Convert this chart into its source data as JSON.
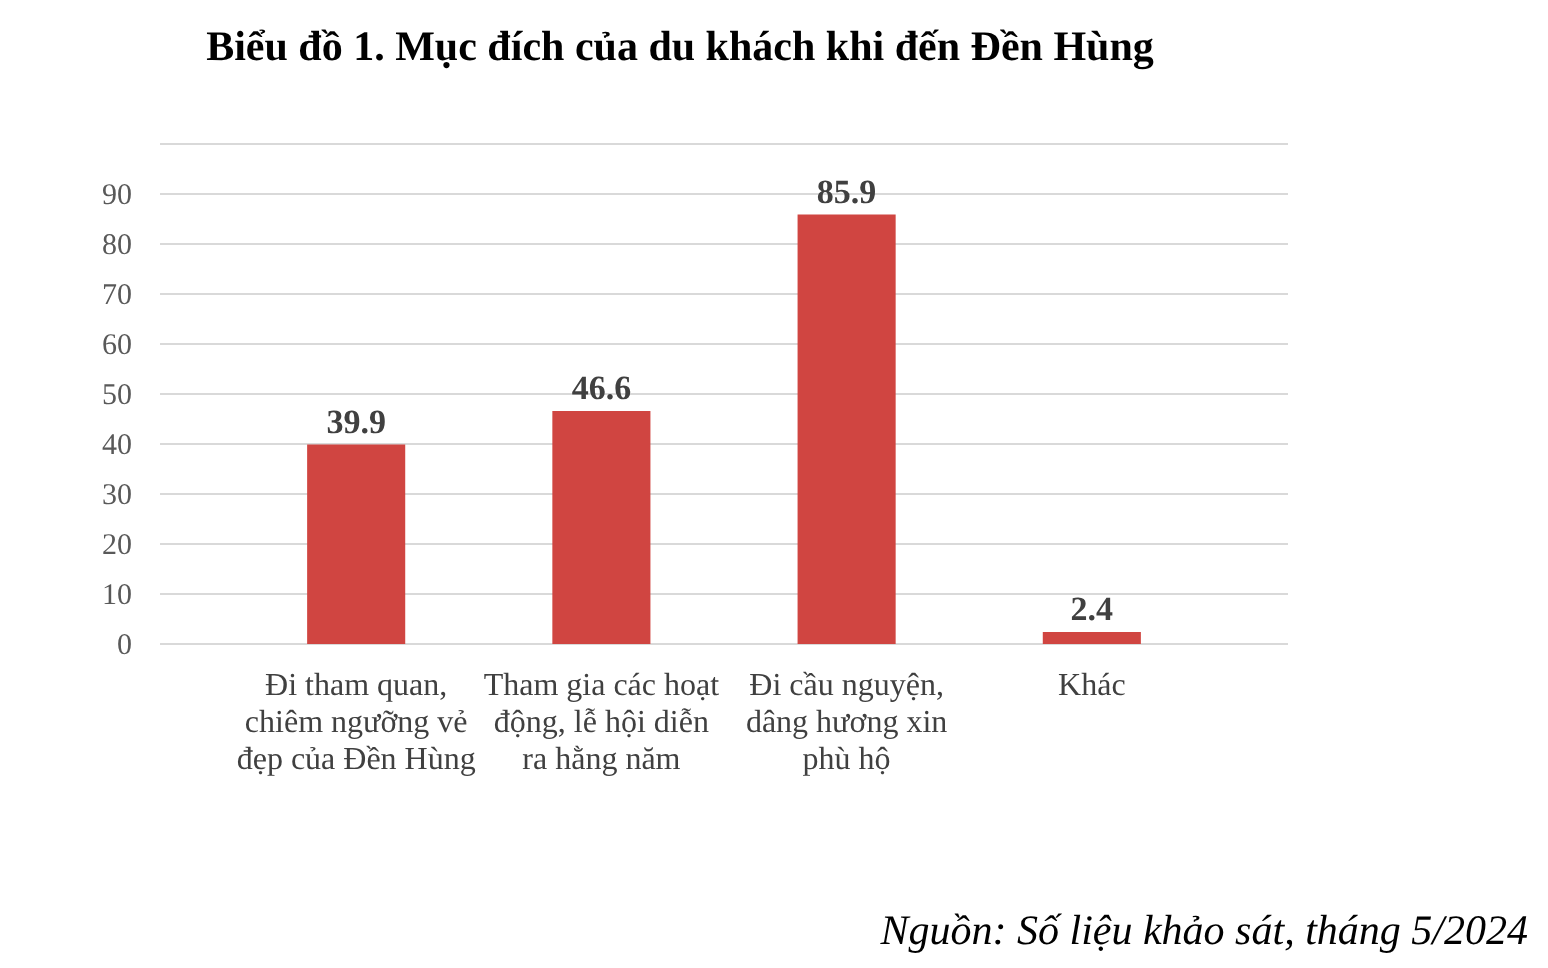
{
  "chart_data": {
    "type": "bar",
    "title": "Biểu đồ 1. Mục đích của du khách khi đến Đền Hùng",
    "categories": [
      "Đi tham quan, chiêm ngưỡng vẻ đẹp của Đền Hùng",
      "Tham gia các hoạt động, lễ hội diễn ra hằng năm",
      "Đi cầu nguyện, dâng hương xin phù hộ",
      "Khác"
    ],
    "values": [
      39.9,
      46.6,
      85.9,
      2.4
    ],
    "color": "#d04541",
    "ylim": [
      0,
      100
    ],
    "yticks": [
      0,
      10,
      20,
      30,
      40,
      50,
      60,
      70,
      80,
      90,
      {
        "value": 100,
        "label": null
      }
    ],
    "grid": true,
    "data_labels": true,
    "annotations": [
      "Nguồn: Số liệu khảo sát, tháng 5/2024"
    ]
  }
}
